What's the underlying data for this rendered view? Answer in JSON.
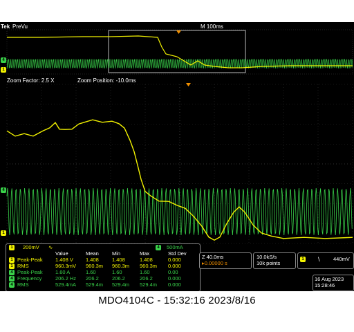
{
  "header": {
    "brand": "Tek",
    "mode": "PreVu",
    "timebase": "M 100ms"
  },
  "zoom": {
    "factor_label": "Zoom Factor: 2.5 X",
    "position_label": "Zoom Position: -10.0ms"
  },
  "channels": {
    "ch1_marker": "1",
    "ch4_marker": "4",
    "ch1_color": "#f2f200",
    "ch4_color": "#39d24a"
  },
  "scale_bar": {
    "ch1_scale": "200mV",
    "ch1_coupling": "∿",
    "ch4_scale": "500mA"
  },
  "measurements": {
    "headers": [
      "Value",
      "Mean",
      "Min",
      "Max",
      "Std Dev"
    ],
    "rows": [
      {
        "ch": "1",
        "name": "Peak-Peak",
        "cells": [
          "1.408 V",
          "1.408",
          "1.408",
          "1.408",
          "0.000"
        ]
      },
      {
        "ch": "1",
        "name": "RMS",
        "cells": [
          "960.3mV",
          "960.3m",
          "960.3m",
          "960.3m",
          "0.000"
        ]
      },
      {
        "ch": "4",
        "name": "Peak-Peak",
        "cells": [
          "1.60 A",
          "1.60",
          "1.60",
          "1.60",
          "0.00"
        ]
      },
      {
        "ch": "4",
        "name": "Frequency",
        "cells": [
          "206.2 Hz",
          "206.2",
          "206.2",
          "206.2",
          "0.000"
        ]
      },
      {
        "ch": "4",
        "name": "RMS",
        "cells": [
          "529.4mA",
          "529.4m",
          "529.4m",
          "529.4m",
          "0.000"
        ]
      }
    ]
  },
  "timing": {
    "zoom_time": "Z 40.0ms",
    "delay": "▸0.00000 s",
    "sample_rate": "10.0kS/s",
    "record_length": "10k points"
  },
  "trigger": {
    "channel": "1",
    "slope": "\\",
    "level": "440mV"
  },
  "clock": {
    "date": "16 Aug 2023",
    "time": "15:28:46"
  },
  "caption": "MDO4104C - 15:32:16   2023/8/16"
}
